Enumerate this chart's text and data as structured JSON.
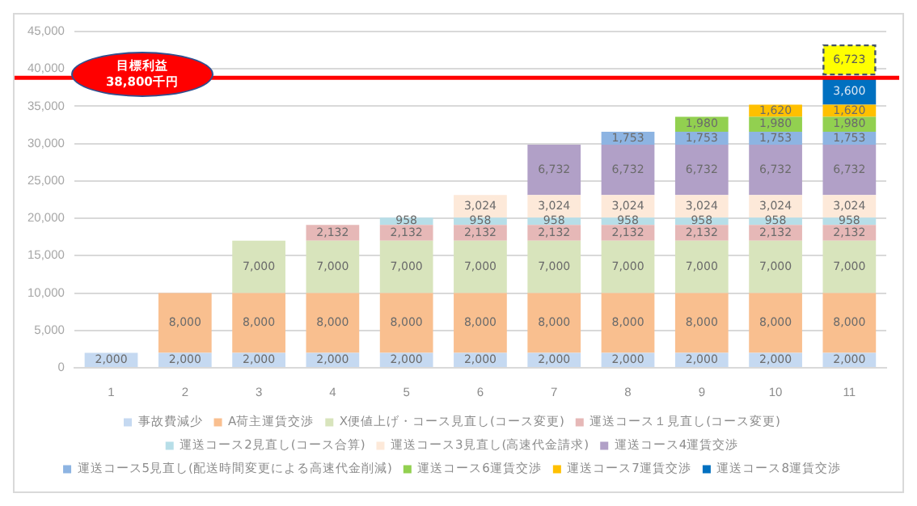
{
  "chart_data": {
    "type": "bar",
    "stacked": true,
    "categories": [
      "1",
      "2",
      "3",
      "4",
      "5",
      "6",
      "7",
      "8",
      "9",
      "10",
      "11"
    ],
    "series": [
      {
        "name": "事故費減少",
        "color": "#c5d9f1",
        "values": [
          2000,
          2000,
          2000,
          2000,
          2000,
          2000,
          2000,
          2000,
          2000,
          2000,
          2000
        ],
        "value_labels": [
          "2,000",
          "2,000",
          "2,000",
          "2,000",
          "2,000",
          "2,000",
          "2,000",
          "2,000",
          "2,000",
          "2,000",
          "2,000"
        ]
      },
      {
        "name": "A荷主運賃交渉",
        "color": "#f9bf8f",
        "values": [
          null,
          8000,
          8000,
          8000,
          8000,
          8000,
          8000,
          8000,
          8000,
          8000,
          8000
        ],
        "value_labels": [
          null,
          "8,000",
          "8,000",
          "8,000",
          "8,000",
          "8,000",
          "8,000",
          "8,000",
          "8,000",
          "8,000",
          "8,000"
        ]
      },
      {
        "name": "X便値上げ・コース見直し(コース変更)",
        "color": "#d8e4bc",
        "values": [
          null,
          null,
          7000,
          7000,
          7000,
          7000,
          7000,
          7000,
          7000,
          7000,
          7000
        ],
        "value_labels": [
          null,
          null,
          "7,000",
          "7,000",
          "7,000",
          "7,000",
          "7,000",
          "7,000",
          "7,000",
          "7,000",
          "7,000"
        ]
      },
      {
        "name": "運送コース１見直し(コース変更)",
        "color": "#e6b8b7",
        "values": [
          null,
          null,
          null,
          2132,
          2132,
          2132,
          2132,
          2132,
          2132,
          2132,
          2132
        ],
        "value_labels": [
          null,
          null,
          null,
          "2,132",
          "2,132",
          "2,132",
          "2,132",
          "2,132",
          "2,132",
          "2,132",
          "2,132"
        ]
      },
      {
        "name": "運送コース2見直し(コース合算)",
        "color": "#b7dee8",
        "values": [
          null,
          null,
          null,
          null,
          958,
          958,
          958,
          958,
          958,
          958,
          958
        ],
        "value_labels": [
          null,
          null,
          null,
          null,
          "958",
          "958",
          "958",
          "958",
          "958",
          "958",
          "958"
        ]
      },
      {
        "name": "運送コース3見直し(高速代金請求)",
        "color": "#fde9d9",
        "values": [
          null,
          null,
          null,
          null,
          null,
          3024,
          3024,
          3024,
          3024,
          3024,
          3024
        ],
        "value_labels": [
          null,
          null,
          null,
          null,
          null,
          "3,024",
          "3,024",
          "3,024",
          "3,024",
          "3,024",
          "3,024"
        ]
      },
      {
        "name": "運送コース4運賃交渉",
        "color": "#b1a0c7",
        "values": [
          null,
          null,
          null,
          null,
          null,
          null,
          6732,
          6732,
          6732,
          6732,
          6732
        ],
        "value_labels": [
          null,
          null,
          null,
          null,
          null,
          null,
          "6,732",
          "6,732",
          "6,732",
          "6,732",
          "6,732"
        ]
      },
      {
        "name": "運送コース5見直し(配送時間変更による高速代金削減)",
        "color": "#8db4e2",
        "values": [
          null,
          null,
          null,
          null,
          null,
          null,
          null,
          1753,
          1753,
          1753,
          1753
        ],
        "value_labels": [
          null,
          null,
          null,
          null,
          null,
          null,
          null,
          "1,753",
          "1,753",
          "1,753",
          "1,753"
        ]
      },
      {
        "name": "運送コース6運賃交渉",
        "color": "#92d050",
        "values": [
          null,
          null,
          null,
          null,
          null,
          null,
          null,
          null,
          1980,
          1980,
          1980
        ],
        "value_labels": [
          null,
          null,
          null,
          null,
          null,
          null,
          null,
          null,
          "1,980",
          "1,980",
          "1,980"
        ]
      },
      {
        "name": "運送コース7運賃交渉",
        "color": "#ffc000",
        "values": [
          null,
          null,
          null,
          null,
          null,
          null,
          null,
          null,
          null,
          1620,
          1620
        ],
        "value_labels": [
          null,
          null,
          null,
          null,
          null,
          null,
          null,
          null,
          null,
          "1,620",
          "1,620"
        ]
      },
      {
        "name": "運送コース8運賃交渉",
        "color": "#0070c0",
        "values": [
          null,
          null,
          null,
          null,
          null,
          null,
          null,
          null,
          null,
          null,
          3600
        ],
        "value_labels": [
          null,
          null,
          null,
          null,
          null,
          null,
          null,
          null,
          null,
          null,
          "3,600"
        ]
      }
    ],
    "ylim": [
      0,
      45000
    ],
    "yticks": [
      0,
      {
        "value": 5000,
        "label": "5,000"
      },
      {
        "value": 10000,
        "label": "10,000"
      },
      {
        "value": 15000,
        "label": "15,000"
      },
      {
        "value": 20000,
        "label": "20,000"
      },
      {
        "value": 25000,
        "label": "25,000"
      },
      {
        "value": 30000,
        "label": "30,000"
      },
      {
        "value": 35000,
        "label": "35,000"
      },
      {
        "value": 40000,
        "label": "40,000"
      },
      {
        "value": 45000,
        "label": "45,000"
      }
    ],
    "grid": "y",
    "legend": "bottom",
    "ref_lines": [
      {
        "axis": "y",
        "value": 38800,
        "label": "目標利益 38,800千円",
        "color": "#ff0000"
      }
    ],
    "annotations": [
      {
        "text": "6,723",
        "x": "11",
        "y": 41200
      }
    ]
  }
}
